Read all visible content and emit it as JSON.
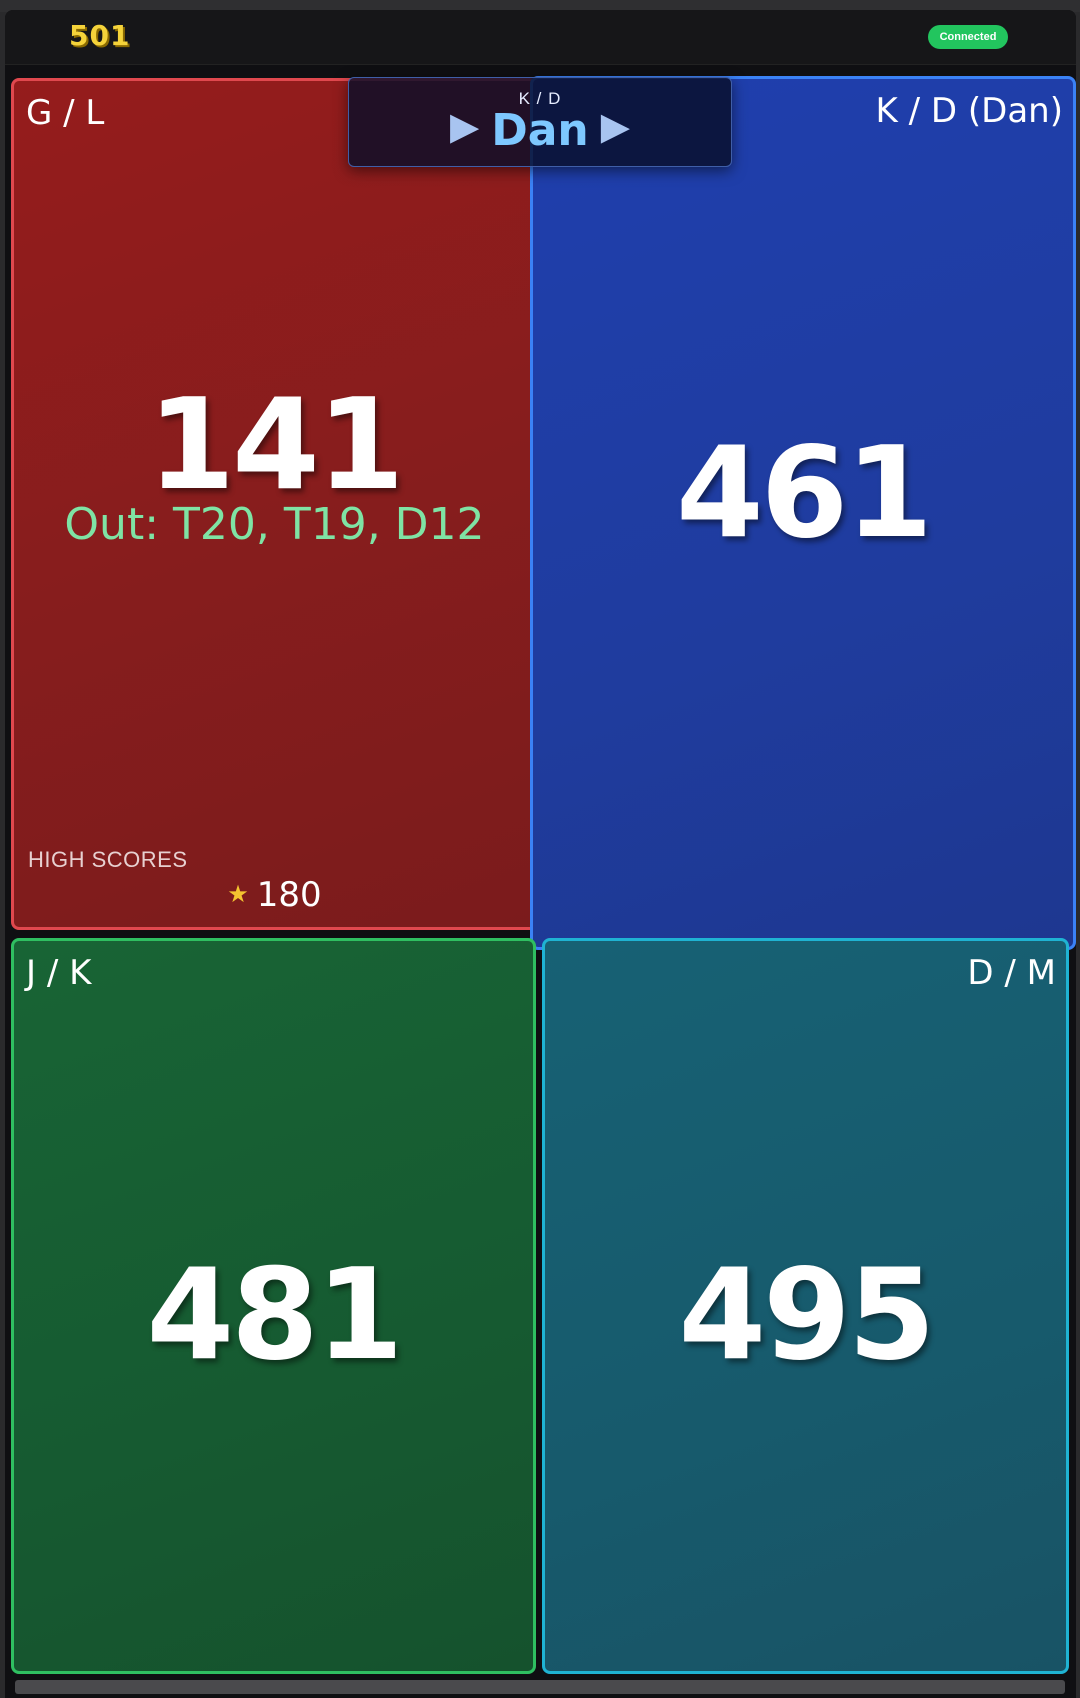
{
  "app": {
    "title": "501",
    "status": "Connected"
  },
  "turn": {
    "team": "K / D",
    "player": "Dan",
    "arrow_icon": "play-arrow-icon"
  },
  "panels": {
    "red": {
      "name": "G / L",
      "score": "141",
      "checkout": "Out: T20, T19, D12",
      "high_scores_label": "HIGH SCORES",
      "high_score": "180",
      "color": "#951c1c",
      "border": "#e0484e"
    },
    "blue": {
      "name": "K / D (Dan)",
      "score": "461",
      "color": "#1f3fae",
      "border": "#3b82f6"
    },
    "green": {
      "name": "J / K",
      "score": "481",
      "color": "#186435",
      "border": "#2fbf61"
    },
    "teal": {
      "name": "D / M",
      "score": "495",
      "color": "#176174",
      "border": "#1fb3d3"
    }
  },
  "colors": {
    "logo": "#f5d33a",
    "status": "#22c55e",
    "checkout": "#7fe3a4",
    "turn_player": "#7ec8ff"
  }
}
